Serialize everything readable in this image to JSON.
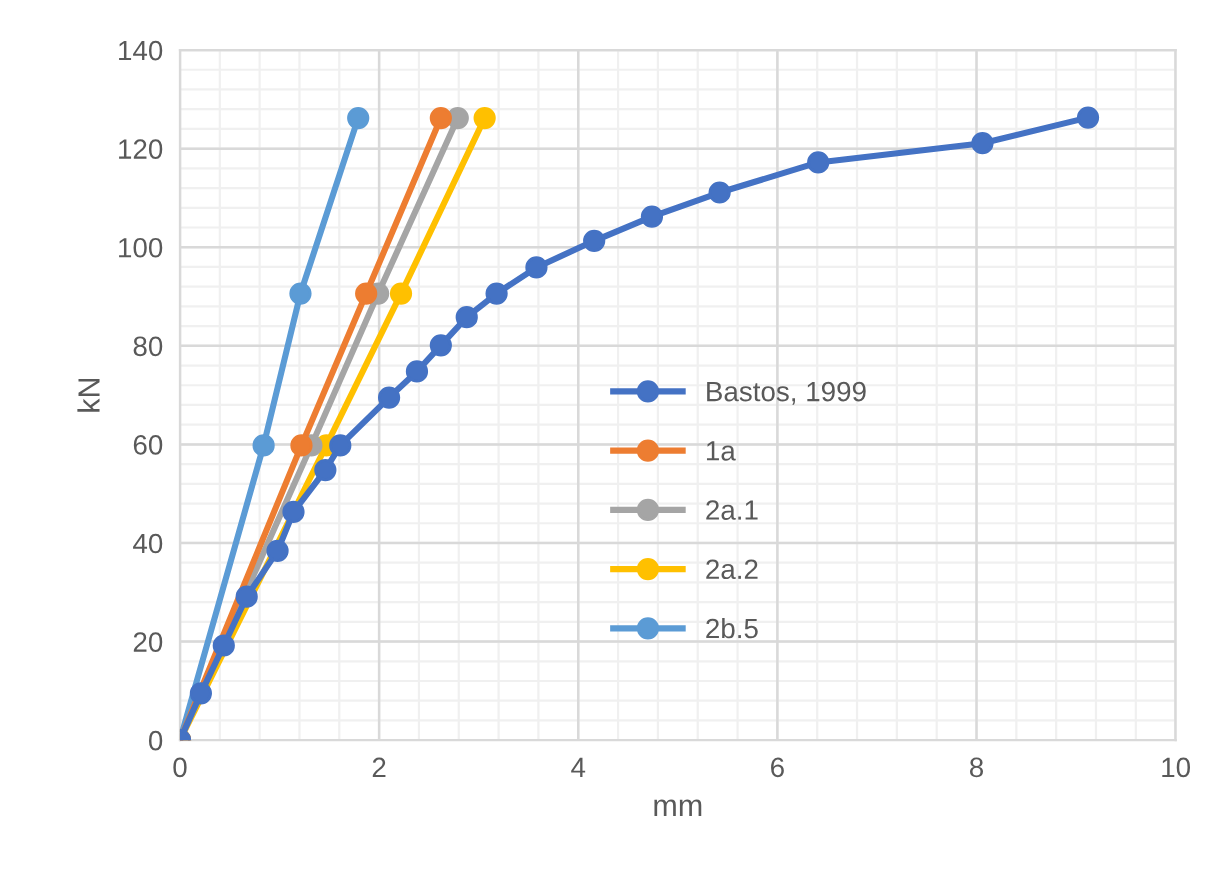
{
  "chart_data": {
    "type": "line",
    "xlabel": "mm",
    "ylabel": "kN",
    "xlim": [
      0,
      10
    ],
    "xticks": [
      0,
      2,
      4,
      6,
      8,
      10
    ],
    "ylim": [
      0,
      140
    ],
    "yticks": [
      0,
      20,
      40,
      60,
      80,
      100,
      120,
      140
    ],
    "grid": true,
    "legend": "center",
    "marker": "circle",
    "line_style": "solid",
    "series": [
      {
        "name": "Bastos, 1999",
        "color": "#4472c4",
        "x": [
          0,
          0.21,
          0.44,
          0.67,
          0.98,
          1.14,
          1.46,
          1.61,
          2.1,
          2.38,
          2.62,
          2.88,
          3.18,
          3.58,
          4.16,
          4.74,
          5.42,
          6.41,
          8.06,
          9.12
        ],
        "values": [
          0,
          9.5,
          19.2,
          29.1,
          38.4,
          46.3,
          54.8,
          59.8,
          69.5,
          74.8,
          80.1,
          85.8,
          90.6,
          95.9,
          101.3,
          106.2,
          111.1,
          117.2,
          121.1,
          126.3
        ]
      },
      {
        "name": "1a",
        "color": "#ed7d31",
        "x": [
          0,
          1.22,
          1.87,
          2.62
        ],
        "values": [
          0,
          59.8,
          90.6,
          126.2
        ]
      },
      {
        "name": "2a.1",
        "color": "#a5a5a5",
        "x": [
          0,
          1.32,
          1.99,
          2.79
        ],
        "values": [
          0,
          59.8,
          90.6,
          126.2
        ]
      },
      {
        "name": "2a.2",
        "color": "#ffc000",
        "x": [
          0,
          1.47,
          2.22,
          3.06
        ],
        "values": [
          0,
          59.8,
          90.6,
          126.2
        ]
      },
      {
        "name": "2b.5",
        "color": "#5b9bd5",
        "x": [
          0,
          0.84,
          1.21,
          1.79
        ],
        "values": [
          0,
          59.8,
          90.6,
          126.2
        ]
      }
    ]
  }
}
